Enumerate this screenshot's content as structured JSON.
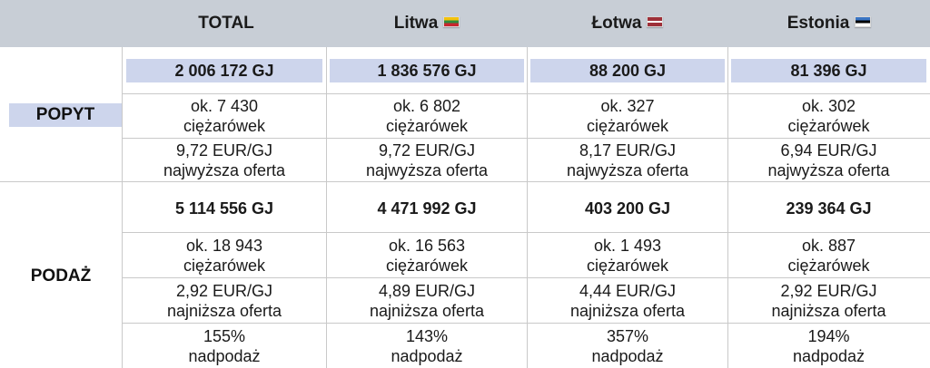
{
  "header": {
    "columns": [
      {
        "label": "TOTAL",
        "flag": ""
      },
      {
        "label": "Litwa",
        "flag": "flag-lithuania-icon"
      },
      {
        "label": "Łotwa",
        "flag": "flag-latvia-icon"
      },
      {
        "label": "Estonia",
        "flag": "flag-estonia-icon"
      }
    ]
  },
  "popyt": {
    "label": "POPYT",
    "volume": [
      "2 006 172 GJ",
      "1 836 576 GJ",
      "88 200 GJ",
      "81 396 GJ"
    ],
    "trucks": [
      {
        "line1": "ok. 7 430",
        "line2": "ciężarówek"
      },
      {
        "line1": "ok. 6 802",
        "line2": "ciężarówek"
      },
      {
        "line1": "ok. 327",
        "line2": "ciężarówek"
      },
      {
        "line1": "ok. 302",
        "line2": "ciężarówek"
      }
    ],
    "price": [
      {
        "line1": "9,72 EUR/GJ",
        "line2": "najwyższa oferta"
      },
      {
        "line1": "9,72 EUR/GJ",
        "line2": "najwyższa oferta"
      },
      {
        "line1": "8,17 EUR/GJ",
        "line2": "najwyższa oferta"
      },
      {
        "line1": "6,94 EUR/GJ",
        "line2": "najwyższa oferta"
      }
    ]
  },
  "podaz": {
    "label": "PODAŻ",
    "volume": [
      "5 114 556 GJ",
      "4 471 992 GJ",
      "403 200 GJ",
      "239 364 GJ"
    ],
    "trucks": [
      {
        "line1": "ok. 18 943",
        "line2": "ciężarówek"
      },
      {
        "line1": "ok. 16 563",
        "line2": "ciężarówek"
      },
      {
        "line1": "ok. 1 493",
        "line2": "ciężarówek"
      },
      {
        "line1": "ok. 887",
        "line2": "ciężarówek"
      }
    ],
    "price": [
      {
        "line1": "2,92 EUR/GJ",
        "line2": "najniższa oferta"
      },
      {
        "line1": "4,89 EUR/GJ",
        "line2": "najniższa oferta"
      },
      {
        "line1": "4,44 EUR/GJ",
        "line2": "najniższa oferta"
      },
      {
        "line1": "2,92 EUR/GJ",
        "line2": "najniższa oferta"
      }
    ],
    "oversupply": [
      {
        "line1": "155%",
        "line2": "nadpodaż"
      },
      {
        "line1": "143%",
        "line2": "nadpodaż"
      },
      {
        "line1": "357%",
        "line2": "nadpodaż"
      },
      {
        "line1": "194%",
        "line2": "nadpodaż"
      }
    ]
  },
  "colors": {
    "header_bg": "#c8ced6",
    "highlight_bg": "#cdd5ec",
    "grid_line": "#c9c9c9"
  }
}
